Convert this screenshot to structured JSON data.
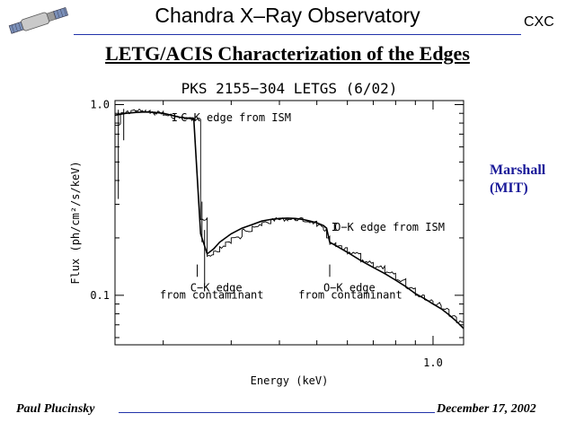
{
  "header": {
    "title": "Chandra X–Ray Observatory",
    "org": "CXC",
    "logo_icon": "chandra-satellite-icon"
  },
  "slide_title": "LETG/ACIS Characterization of the Edges",
  "author": "Marshall\n(MIT)",
  "footer": {
    "left": "Paul Plucinsky",
    "right": "December 17, 2002"
  },
  "colors": {
    "rule": "#2233aa",
    "author": "#1a1a99"
  },
  "chart_data": {
    "type": "line",
    "title": "PKS 2155−304 LETGS (6/02)",
    "xlabel": "Energy (keV)",
    "ylabel": "Flux (ph/cm²/s/keV)",
    "x_scale": "log",
    "y_scale": "log",
    "xlim": [
      0.15,
      1.2
    ],
    "ylim": [
      0.055,
      1.05
    ],
    "x_ticks": [
      {
        "value": 1.0,
        "label": "1.0"
      }
    ],
    "y_ticks": [
      {
        "value": 0.1,
        "label": "0.1"
      },
      {
        "value": 1.0,
        "label": "1.0"
      }
    ],
    "series": [
      {
        "style": "histogram",
        "x": [
          0.15,
          0.155,
          0.16,
          0.165,
          0.17,
          0.175,
          0.18,
          0.185,
          0.19,
          0.2,
          0.21,
          0.22,
          0.23,
          0.24,
          0.25,
          0.26,
          0.27,
          0.28,
          0.29,
          0.3,
          0.32,
          0.34,
          0.36,
          0.38,
          0.4,
          0.42,
          0.44,
          0.46,
          0.48,
          0.5,
          0.52,
          0.53,
          0.54,
          0.56,
          0.58,
          0.6,
          0.65,
          0.7,
          0.75,
          0.8,
          0.85,
          0.9,
          0.95,
          1.0,
          1.05,
          1.1,
          1.15,
          1.2
        ],
        "y": [
          0.78,
          0.9,
          0.91,
          0.93,
          0.93,
          0.92,
          0.92,
          0.9,
          0.91,
          0.88,
          0.86,
          0.85,
          0.84,
          0.84,
          0.25,
          0.16,
          0.17,
          0.18,
          0.19,
          0.2,
          0.22,
          0.23,
          0.24,
          0.25,
          0.25,
          0.25,
          0.25,
          0.245,
          0.24,
          0.23,
          0.22,
          0.2,
          0.185,
          0.18,
          0.175,
          0.165,
          0.15,
          0.14,
          0.13,
          0.12,
          0.11,
          0.1,
          0.095,
          0.09,
          0.085,
          0.078,
          0.072,
          0.066
        ]
      },
      {
        "style": "model",
        "x": [
          0.15,
          0.16,
          0.17,
          0.18,
          0.19,
          0.2,
          0.21,
          0.22,
          0.23,
          0.24,
          0.25,
          0.26,
          0.27,
          0.28,
          0.3,
          0.32,
          0.34,
          0.36,
          0.38,
          0.4,
          0.42,
          0.44,
          0.46,
          0.48,
          0.5,
          0.52,
          0.53,
          0.54,
          0.56,
          0.58,
          0.6,
          0.65,
          0.7,
          0.75,
          0.8,
          0.85,
          0.9,
          0.95,
          1.0,
          1.05,
          1.1,
          1.15,
          1.2
        ],
        "y": [
          0.88,
          0.9,
          0.91,
          0.915,
          0.91,
          0.9,
          0.88,
          0.86,
          0.85,
          0.84,
          0.21,
          0.165,
          0.175,
          0.19,
          0.21,
          0.225,
          0.235,
          0.245,
          0.25,
          0.253,
          0.254,
          0.253,
          0.25,
          0.245,
          0.24,
          0.232,
          0.225,
          0.19,
          0.182,
          0.175,
          0.168,
          0.152,
          0.14,
          0.13,
          0.12,
          0.111,
          0.102,
          0.096,
          0.09,
          0.085,
          0.079,
          0.073,
          0.067
        ]
      }
    ],
    "error_bars": [
      {
        "x": 0.153,
        "y": 0.78,
        "low": 0.32,
        "high": 0.94
      },
      {
        "x": 0.158,
        "y": 0.9,
        "low": 0.65,
        "high": 0.95
      },
      {
        "x": 0.252,
        "y": 0.25,
        "low": 0.19,
        "high": 0.31
      },
      {
        "x": 0.256,
        "y": 0.16,
        "low": 0.115,
        "high": 0.22
      }
    ],
    "annotations": [
      {
        "text": "I",
        "x": 0.21,
        "y": 0.82
      },
      {
        "text": "C−K edge from ISM",
        "x": 0.222,
        "y": 0.82
      },
      {
        "text": "I",
        "x": 0.545,
        "y": 0.218
      },
      {
        "text": "O−K edge from ISM",
        "x": 0.555,
        "y": 0.218
      },
      {
        "text": "C−K edge",
        "x": 0.235,
        "y": 0.105
      },
      {
        "text": "from contaminant",
        "x": 0.196,
        "y": 0.096
      },
      {
        "text": "O−K edge",
        "x": 0.52,
        "y": 0.105
      },
      {
        "text": "from contaminant",
        "x": 0.448,
        "y": 0.096
      }
    ],
    "markers": [
      {
        "x": 0.245,
        "y_top": 0.145,
        "y_bottom": 0.125
      },
      {
        "x": 0.54,
        "y_top": 0.145,
        "y_bottom": 0.125
      }
    ],
    "grid": false
  }
}
